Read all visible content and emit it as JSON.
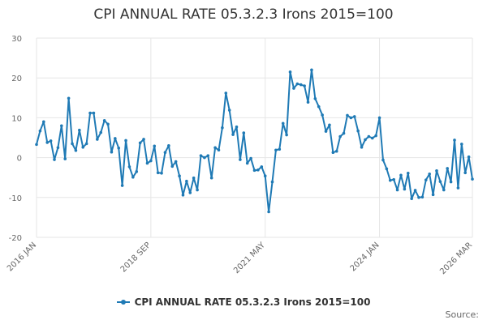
{
  "chart_data": {
    "type": "line",
    "title": "CPI ANNUAL RATE 05.3.2.3 Irons 2015=100",
    "xlabel": "",
    "ylabel": "",
    "ylim": [
      -20,
      30
    ],
    "y_ticks": [
      "30",
      "20",
      "10",
      "0",
      "-10",
      "-20"
    ],
    "x_ticks": [
      {
        "label": "2016 JAN",
        "index": 0
      },
      {
        "label": "2018 SEP",
        "index": 32
      },
      {
        "label": "2021 MAY",
        "index": 64
      },
      {
        "label": "2024 JAN",
        "index": 96
      },
      {
        "label": "2026 MAR",
        "index": 122
      }
    ],
    "series": [
      {
        "name": "CPI ANNUAL RATE 05.3.2.3 Irons 2015=100",
        "color": "#1f7ab5",
        "values": [
          3.3,
          6.7,
          9.0,
          3.8,
          4.2,
          -0.5,
          2.5,
          8.0,
          -0.3,
          14.9,
          3.5,
          1.8,
          6.9,
          2.6,
          3.5,
          11.2,
          11.2,
          4.6,
          6.3,
          9.3,
          8.4,
          1.4,
          4.8,
          2.4,
          -7.0,
          4.3,
          -2.3,
          -4.9,
          -3.5,
          3.7,
          4.6,
          -1.4,
          -0.8,
          2.9,
          -3.8,
          -3.9,
          1.3,
          3.0,
          -2.2,
          -1.0,
          -4.6,
          -9.4,
          -5.9,
          -8.8,
          -5.1,
          -8.1,
          0.5,
          0.0,
          0.5,
          -5.1,
          2.5,
          1.9,
          7.5,
          16.2,
          11.9,
          5.8,
          7.7,
          -0.5,
          6.2,
          -1.4,
          -0.2,
          -3.2,
          -3.1,
          -2.3,
          -4.6,
          -13.6,
          -6.1,
          1.9,
          2.1,
          8.6,
          5.7,
          21.5,
          17.4,
          18.5,
          18.3,
          18.0,
          13.9,
          22.0,
          14.8,
          12.8,
          10.7,
          6.6,
          8.2,
          1.3,
          1.6,
          5.3,
          6.1,
          10.6,
          10.0,
          10.3,
          6.7,
          2.6,
          4.5,
          5.3,
          4.9,
          5.5,
          10.0,
          -0.6,
          -2.8,
          -5.7,
          -5.5,
          -8.1,
          -4.4,
          -7.9,
          -3.9,
          -10.3,
          -8.2,
          -10.0,
          -9.9,
          -5.6,
          -4.1,
          -9.3,
          -3.3,
          -6.0,
          -8.1,
          -2.7,
          -6.1,
          4.4,
          -7.6,
          3.4,
          -3.8,
          0.2,
          -5.4
        ]
      }
    ],
    "legend": "bottom-center",
    "grid": true
  },
  "source_label": "Source:"
}
